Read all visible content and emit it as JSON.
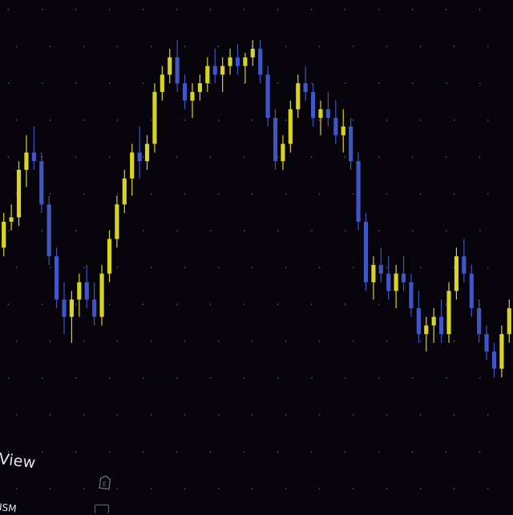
{
  "colors": {
    "background": "#06030b",
    "up_candle": "#d8d424",
    "down_candle": "#3f56c4",
    "grid_dot": "#5a5466"
  },
  "footer": {
    "view_label": "View",
    "ticker_fragment": "ISM",
    "e_icon": "e-icon"
  },
  "chart_data": {
    "type": "candlestick",
    "title": "",
    "xlabel": "",
    "ylabel": "",
    "grid": "dotted",
    "ylim": [
      0,
      100
    ],
    "series": [
      {
        "points": [
          [
            52,
            60,
            50,
            58
          ],
          [
            58,
            62,
            56,
            59
          ],
          [
            59,
            72,
            57,
            70
          ],
          [
            70,
            78,
            66,
            74
          ],
          [
            74,
            80,
            70,
            72
          ],
          [
            72,
            74,
            60,
            62
          ],
          [
            62,
            64,
            48,
            50
          ],
          [
            50,
            52,
            38,
            40
          ],
          [
            40,
            44,
            32,
            36
          ],
          [
            36,
            42,
            30,
            40
          ],
          [
            40,
            46,
            36,
            44
          ],
          [
            44,
            48,
            38,
            40
          ],
          [
            40,
            44,
            34,
            36
          ],
          [
            36,
            48,
            34,
            46
          ],
          [
            46,
            56,
            44,
            54
          ],
          [
            54,
            64,
            52,
            62
          ],
          [
            62,
            70,
            60,
            68
          ],
          [
            68,
            76,
            64,
            74
          ],
          [
            74,
            80,
            68,
            72
          ],
          [
            72,
            78,
            70,
            76
          ],
          [
            76,
            90,
            74,
            88
          ],
          [
            88,
            94,
            86,
            92
          ],
          [
            92,
            98,
            90,
            96
          ],
          [
            96,
            100,
            88,
            90
          ],
          [
            90,
            92,
            84,
            86
          ],
          [
            86,
            90,
            82,
            88
          ],
          [
            88,
            92,
            86,
            90
          ],
          [
            90,
            96,
            88,
            94
          ],
          [
            94,
            98,
            90,
            92
          ],
          [
            92,
            96,
            88,
            94
          ],
          [
            94,
            98,
            92,
            96
          ],
          [
            96,
            99,
            92,
            94
          ],
          [
            94,
            97,
            90,
            96
          ],
          [
            96,
            100,
            94,
            98
          ],
          [
            98,
            100,
            90,
            92
          ],
          [
            92,
            94,
            80,
            82
          ],
          [
            82,
            84,
            70,
            72
          ],
          [
            72,
            78,
            70,
            76
          ],
          [
            76,
            86,
            74,
            84
          ],
          [
            84,
            92,
            82,
            90
          ],
          [
            90,
            94,
            86,
            88
          ],
          [
            88,
            90,
            80,
            82
          ],
          [
            82,
            86,
            78,
            84
          ],
          [
            84,
            88,
            80,
            82
          ],
          [
            82,
            86,
            76,
            78
          ],
          [
            78,
            84,
            74,
            80
          ],
          [
            80,
            82,
            70,
            72
          ],
          [
            72,
            74,
            56,
            58
          ],
          [
            58,
            60,
            42,
            44
          ],
          [
            44,
            50,
            40,
            48
          ],
          [
            48,
            52,
            44,
            46
          ],
          [
            46,
            50,
            40,
            42
          ],
          [
            42,
            48,
            38,
            46
          ],
          [
            46,
            50,
            42,
            44
          ],
          [
            44,
            46,
            36,
            38
          ],
          [
            38,
            42,
            30,
            32
          ],
          [
            32,
            36,
            28,
            34
          ],
          [
            34,
            38,
            30,
            36
          ],
          [
            36,
            40,
            30,
            32
          ],
          [
            32,
            44,
            30,
            42
          ],
          [
            42,
            52,
            40,
            50
          ],
          [
            50,
            54,
            44,
            46
          ],
          [
            46,
            48,
            36,
            38
          ],
          [
            38,
            40,
            30,
            32
          ],
          [
            32,
            34,
            26,
            28
          ],
          [
            28,
            30,
            22,
            24
          ],
          [
            24,
            34,
            22,
            32
          ],
          [
            32,
            40,
            30,
            38
          ]
        ]
      }
    ]
  }
}
